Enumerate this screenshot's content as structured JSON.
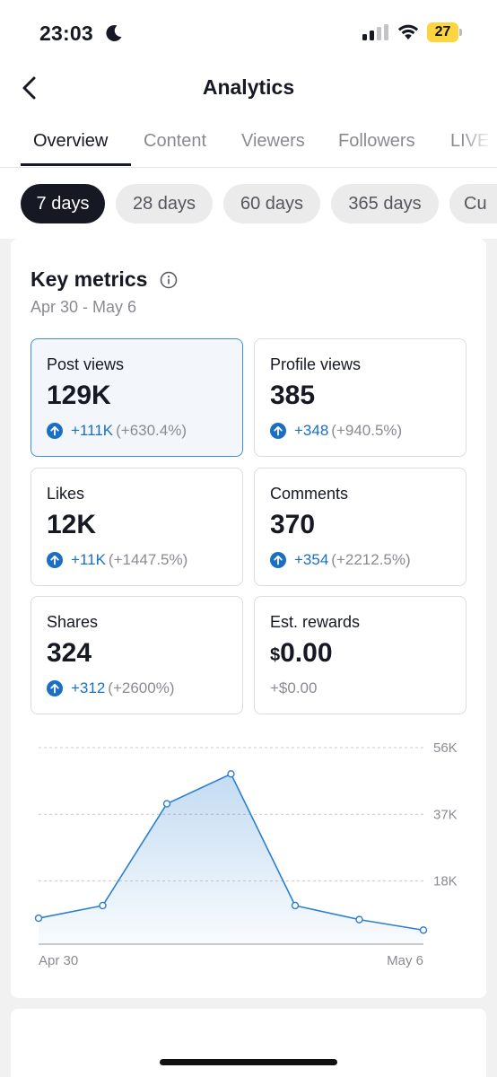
{
  "status_bar": {
    "time": "23:03",
    "battery_level": "27",
    "battery_color": "#fcd53f",
    "icons": [
      "moon-icon",
      "signal-icon",
      "wifi-icon",
      "battery-icon"
    ]
  },
  "header": {
    "title": "Analytics",
    "back_icon": "chevron-left-icon"
  },
  "tabs": [
    "Overview",
    "Content",
    "Viewers",
    "Followers",
    "LIVE"
  ],
  "active_tab": "Overview",
  "periods": [
    "7 days",
    "28 days",
    "60 days",
    "365 days",
    "Cu"
  ],
  "active_period": "7 days",
  "key_metrics": {
    "title": "Key metrics",
    "range": "Apr 30 - May 6",
    "items": [
      {
        "label": "Post views",
        "value": "129K",
        "delta_abs": "+111K",
        "delta_pct": "(+630.4%)",
        "selected": true
      },
      {
        "label": "Profile views",
        "value": "385",
        "delta_abs": "+348",
        "delta_pct": "(+940.5%)"
      },
      {
        "label": "Likes",
        "value": "12K",
        "delta_abs": "+11K",
        "delta_pct": "(+1447.5%)"
      },
      {
        "label": "Comments",
        "value": "370",
        "delta_abs": "+354",
        "delta_pct": "(+2212.5%)"
      },
      {
        "label": "Shares",
        "value": "324",
        "delta_abs": "+312",
        "delta_pct": "(+2600%)"
      },
      {
        "label": "Est. rewards",
        "currency": "$",
        "value": "0.00",
        "delta": "+$0.00"
      }
    ]
  },
  "colors": {
    "accent_blue": "#1a6fc5",
    "chart_line": "#2b7fd0",
    "selected_border": "#3b8fd8"
  },
  "chart_data": {
    "type": "area",
    "x": [
      "Apr 30",
      "May 1",
      "May 2",
      "May 3",
      "May 4",
      "May 5",
      "May 6"
    ],
    "xticks": [
      "Apr 30",
      "May 6"
    ],
    "y": [
      7400,
      11000,
      40000,
      48500,
      11000,
      7000,
      4000
    ],
    "yticks": [
      18000,
      37000,
      56000
    ],
    "ytick_labels": [
      "18K",
      "37K",
      "56K"
    ],
    "ylim": [
      0,
      56000
    ],
    "grid": true,
    "y_axis_position": "right"
  }
}
